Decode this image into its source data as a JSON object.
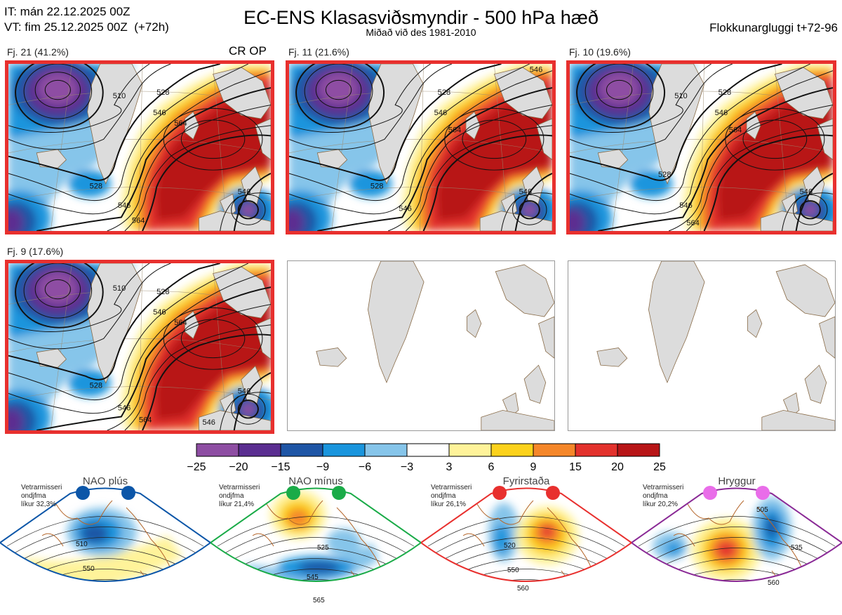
{
  "header": {
    "it_line": "IT: mán 22.12.2025 00Z",
    "vt_line": "VT: fim 25.12.2025 00Z  (+72h)",
    "title": "EC-ENS Klasasviðsmyndir - 500 hPa hæð",
    "subtitle": "Miðað við des 1981-2010",
    "window": "Flokkunargluggi t+72-96"
  },
  "panels": [
    {
      "label": "Fj. 21 (41.2%)",
      "tag": "CR OP",
      "selected": true,
      "contours": [
        "510",
        "528",
        "546",
        "564",
        "528",
        "546",
        "564",
        "546",
        "546"
      ]
    },
    {
      "label": "Fj. 11 (21.6%)",
      "tag": "",
      "selected": true,
      "contours": [
        "546",
        "528",
        "546",
        "564",
        "528",
        "546",
        "546",
        "546",
        "546"
      ]
    },
    {
      "label": "Fj. 10 (19.6%)",
      "tag": "",
      "selected": true,
      "contours": [
        "510",
        "528",
        "546",
        "564",
        "528",
        "546",
        "564",
        "546",
        "546"
      ]
    },
    {
      "label": "Fj. 9 (17.6%)",
      "tag": "",
      "selected": true,
      "contours": [
        "510",
        "528",
        "546",
        "564",
        "528",
        "546",
        "564",
        "546",
        "546"
      ]
    }
  ],
  "empty_maps": 2,
  "colorbar": {
    "ticks": [
      "−25",
      "−20",
      "−15",
      "−9",
      "−6",
      "−3",
      "3",
      "6",
      "9",
      "15",
      "20",
      "25"
    ],
    "colors": [
      "#8e4ea3",
      "#5b2e91",
      "#1f56a6",
      "#1a95dd",
      "#86c5ea",
      "#ffffff",
      "#fff39a",
      "#fcd21c",
      "#f5872a",
      "#e3322d",
      "#b81517"
    ]
  },
  "regimes": [
    {
      "title": "NAO plús",
      "text1": "Vetrarmisseri",
      "text2": "ondjfma",
      "text3": "líkur 32,3%",
      "labels": [
        "510",
        "550"
      ],
      "dot_color": "#0c56a8",
      "border_color": "#0c56a8"
    },
    {
      "title": "NAO mínus",
      "text1": "Vetrarmisseri",
      "text2": "ondjfma",
      "text3": "líkur 21,4%",
      "labels": [
        "525",
        "545",
        "565"
      ],
      "dot_color": "#1aab48",
      "border_color": "#1aab48"
    },
    {
      "title": "Fyrirstaða",
      "text1": "Vetrarmisseri",
      "text2": "ondjfma",
      "text3": "líkur 26,1%",
      "labels": [
        "520",
        "550",
        "560"
      ],
      "dot_color": "#e8302e",
      "border_color": "#e8302e"
    },
    {
      "title": "Hryggur",
      "text1": "Vetrarmisseri",
      "text2": "ondjfma",
      "text3": "líkur 20,2%",
      "labels": [
        "505",
        "535",
        "560"
      ],
      "dot_color": "#e96de9",
      "border_color": "#8a2a96"
    }
  ]
}
